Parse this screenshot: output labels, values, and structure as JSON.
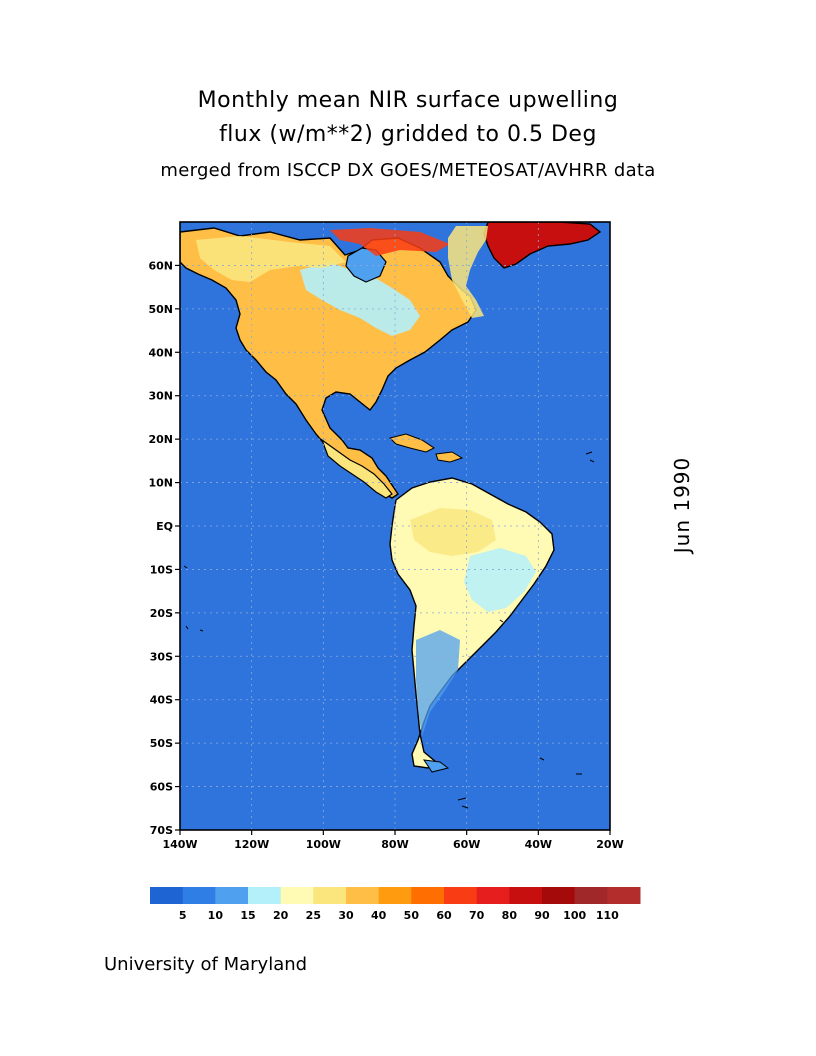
{
  "title": {
    "line1": "Monthly mean NIR surface upwelling",
    "line2": "flux (w/m**2) gridded to 0.5 Deg",
    "line3": "merged from ISCCP DX GOES/METEOSAT/AVHRR data"
  },
  "date": "Jun 1990",
  "credit": "University of Maryland",
  "map": {
    "lon_range": [
      -140,
      -20
    ],
    "lat_range": [
      -70,
      70
    ],
    "lat_ticks": [
      "60N",
      "50N",
      "40N",
      "30N",
      "20N",
      "10N",
      "EQ",
      "10S",
      "20S",
      "30S",
      "40S",
      "50S",
      "60S",
      "70S"
    ],
    "lon_ticks": [
      "140W",
      "120W",
      "100W",
      "80W",
      "60W",
      "40W",
      "20W"
    ],
    "grid": "dotted",
    "ocean_color": "#2f74dc"
  },
  "colorbar": {
    "labels": [
      "5",
      "10",
      "15",
      "20",
      "25",
      "30",
      "40",
      "50",
      "60",
      "70",
      "80",
      "90",
      "100",
      "110"
    ],
    "colors": [
      "#1e64d2",
      "#2f7ee6",
      "#50a0f0",
      "#b4f0fa",
      "#fffab4",
      "#fae67d",
      "#ffbe46",
      "#ff9b0f",
      "#ff6e00",
      "#fa3c14",
      "#e61e1e",
      "#c80f0f",
      "#a50a0a",
      "#a02828",
      "#b42d2d"
    ]
  }
}
